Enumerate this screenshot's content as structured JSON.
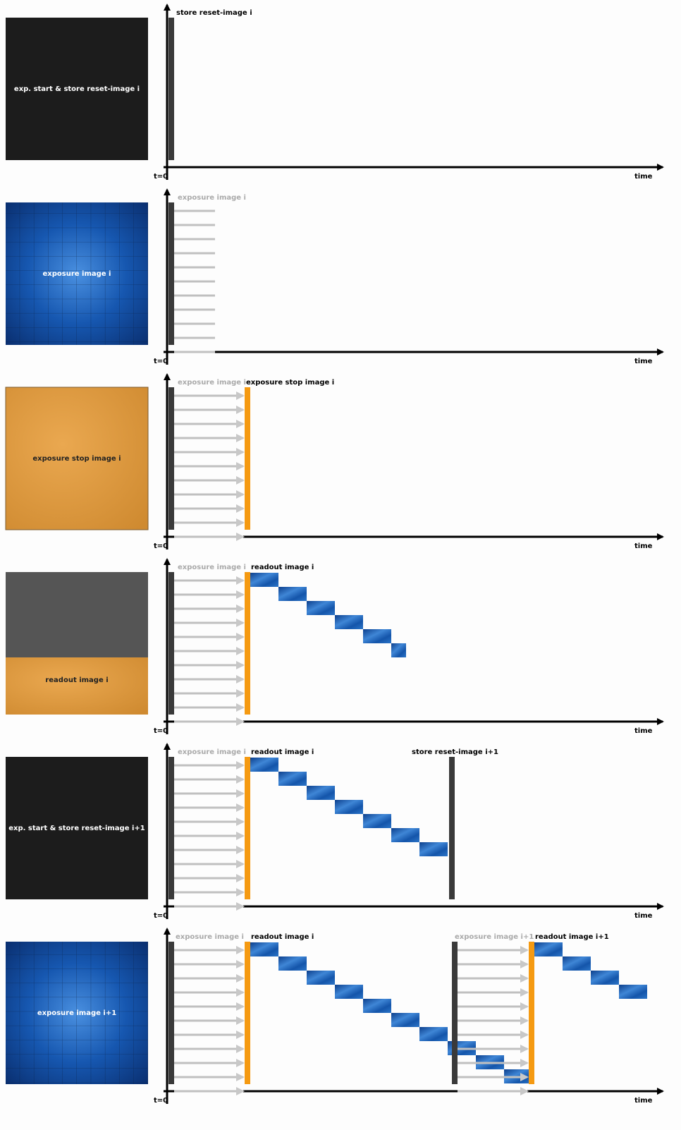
{
  "panels": [
    {
      "image_label": "exp. start & store reset-image i",
      "labels": [
        "store reset-image i"
      ],
      "t0": "t=0",
      "time": "time"
    },
    {
      "image_label": "exposure image i",
      "labels": [
        "exposure image i"
      ],
      "t0": "t=0",
      "time": "time"
    },
    {
      "image_label": "exposure stop image i",
      "labels": [
        "exposure image i",
        "exposure stop image i"
      ],
      "t0": "t=0",
      "time": "time"
    },
    {
      "image_label": "readout image i",
      "labels": [
        "exposure image i",
        "readout image i"
      ],
      "t0": "t=0",
      "time": "time"
    },
    {
      "image_label": "exp. start & store reset-image i+1",
      "labels": [
        "exposure image i",
        "readout image i",
        "store reset-image i+1"
      ],
      "t0": "t=0",
      "time": "time"
    },
    {
      "image_label": "exposure image i+1",
      "labels": [
        "exposure image i",
        "readout image i",
        "exposure image i+1",
        "readout image i+1"
      ],
      "t0": "t=0",
      "time": "time"
    }
  ]
}
